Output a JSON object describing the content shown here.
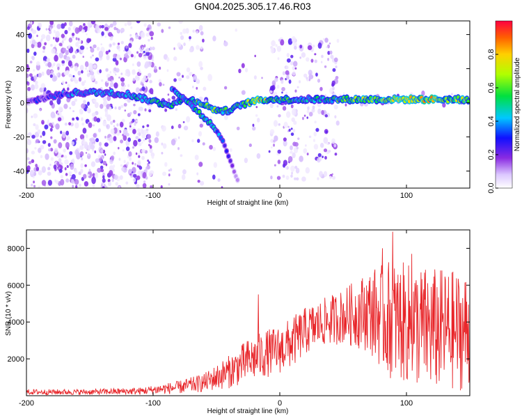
{
  "title": "GN04.2025.305.17.46.R03",
  "colors": {
    "snr_line": "#e8262a",
    "axis": "#000000",
    "background": "#ffffff",
    "scatter_light": "#e8d8ff",
    "scatter_mid": "#b080f0",
    "scatter_dark": "#6a0fe0"
  },
  "chart_data": [
    {
      "type": "heatmap",
      "name": "spectrogram",
      "xlabel": "Height of straight line (km)",
      "ylabel": "Frequency (Hz)",
      "xlim": [
        -200,
        150
      ],
      "ylim": [
        -50,
        48
      ],
      "xticks": [
        -200,
        -100,
        0,
        100
      ],
      "xtick_labels": [
        "-200",
        "-100",
        "0",
        "100"
      ],
      "yticks": [
        -40,
        -20,
        0,
        20,
        40
      ],
      "ytick_labels": [
        "-40",
        "-20",
        "0",
        "20",
        "40"
      ],
      "colorbar": {
        "label": "Normalized spectral amplitude",
        "range": [
          0,
          1
        ],
        "ticks": [
          0.0,
          0.2,
          0.4,
          0.6,
          0.8
        ],
        "tick_labels": [
          "0.0",
          "0.2",
          "0.4",
          "0.6",
          "0.8"
        ],
        "stops": [
          {
            "v": 0.0,
            "c": "#ffffff"
          },
          {
            "v": 0.08,
            "c": "#dcc8ff"
          },
          {
            "v": 0.18,
            "c": "#8a2be2"
          },
          {
            "v": 0.3,
            "c": "#1010ff"
          },
          {
            "v": 0.42,
            "c": "#00c8ff"
          },
          {
            "v": 0.55,
            "c": "#00e040"
          },
          {
            "v": 0.68,
            "c": "#b0ff00"
          },
          {
            "v": 0.8,
            "c": "#ffd000"
          },
          {
            "v": 0.9,
            "c": "#ff6000"
          },
          {
            "v": 1.0,
            "c": "#ff0040"
          }
        ]
      },
      "ridge": [
        {
          "x": -200,
          "y": 0,
          "a": 0.25
        },
        {
          "x": -180,
          "y": 4,
          "a": 0.3
        },
        {
          "x": -160,
          "y": 6,
          "a": 0.4
        },
        {
          "x": -140,
          "y": 6,
          "a": 0.45
        },
        {
          "x": -120,
          "y": 5,
          "a": 0.45
        },
        {
          "x": -105,
          "y": 2,
          "a": 0.5
        },
        {
          "x": -95,
          "y": 0,
          "a": 0.55
        },
        {
          "x": -85,
          "y": -1,
          "a": 0.5
        },
        {
          "x": -75,
          "y": 2,
          "a": 0.45
        },
        {
          "x": -65,
          "y": 1,
          "a": 0.55
        },
        {
          "x": -55,
          "y": -3,
          "a": 0.6
        },
        {
          "x": -45,
          "y": -5,
          "a": 0.55
        },
        {
          "x": -38,
          "y": -4,
          "a": 0.5
        },
        {
          "x": -30,
          "y": -1,
          "a": 0.55
        },
        {
          "x": -20,
          "y": 1,
          "a": 0.75
        },
        {
          "x": -10,
          "y": 2,
          "a": 0.7
        },
        {
          "x": 0,
          "y": 2,
          "a": 0.55
        },
        {
          "x": 10,
          "y": 2,
          "a": 0.5
        },
        {
          "x": 25,
          "y": 2,
          "a": 0.5
        },
        {
          "x": 40,
          "y": 2,
          "a": 0.5
        },
        {
          "x": 46,
          "y": 2,
          "a": 0.55
        },
        {
          "x": 60,
          "y": 2,
          "a": 0.65
        },
        {
          "x": 80,
          "y": 2,
          "a": 0.7
        },
        {
          "x": 100,
          "y": 2,
          "a": 0.7
        },
        {
          "x": 120,
          "y": 2,
          "a": 0.75
        },
        {
          "x": 135,
          "y": 2,
          "a": 0.7
        },
        {
          "x": 150,
          "y": 2,
          "a": 0.6
        }
      ],
      "branch": [
        {
          "x": -85,
          "y": 8,
          "a": 0.4
        },
        {
          "x": -75,
          "y": 2,
          "a": 0.45
        },
        {
          "x": -65,
          "y": -5,
          "a": 0.5
        },
        {
          "x": -55,
          "y": -12,
          "a": 0.45
        },
        {
          "x": -48,
          "y": -18,
          "a": 0.35
        },
        {
          "x": -42,
          "y": -28,
          "a": 0.25
        },
        {
          "x": -36,
          "y": -40,
          "a": 0.15
        },
        {
          "x": -32,
          "y": -47,
          "a": 0.1
        }
      ],
      "scatter_regions": [
        {
          "x0": -200,
          "x1": -100,
          "y0": -50,
          "y1": 48,
          "density": 1.0
        },
        {
          "x0": -100,
          "x1": -60,
          "y0": -50,
          "y1": 48,
          "density": 0.3
        },
        {
          "x0": -60,
          "x1": -5,
          "y0": -50,
          "y1": 48,
          "density": 0.08
        },
        {
          "x0": -7,
          "x1": 46,
          "y0": -45,
          "y1": 38,
          "density": 0.6
        },
        {
          "x0": 46,
          "x1": 150,
          "y0": -2,
          "y1": 6,
          "density": 0.3
        }
      ]
    },
    {
      "type": "line",
      "name": "snr",
      "xlabel": "Height of straight line (km)",
      "ylabel": "SNR (10 * v/v)",
      "xlim": [
        -200,
        150
      ],
      "ylim": [
        0,
        9000
      ],
      "xticks": [
        -200,
        -100,
        0,
        100
      ],
      "xtick_labels": [
        "-200",
        "-100",
        "0",
        "100"
      ],
      "yticks": [
        2000,
        4000,
        6000,
        8000
      ],
      "ytick_labels": [
        "2000",
        "4000",
        "6000",
        "8000"
      ],
      "envelope": [
        {
          "x": -200,
          "base": 200,
          "amp": 150
        },
        {
          "x": -150,
          "base": 200,
          "amp": 150
        },
        {
          "x": -110,
          "base": 250,
          "amp": 200
        },
        {
          "x": -80,
          "base": 450,
          "amp": 350
        },
        {
          "x": -60,
          "base": 700,
          "amp": 500
        },
        {
          "x": -40,
          "base": 1300,
          "amp": 900
        },
        {
          "x": -25,
          "base": 1900,
          "amp": 1200
        },
        {
          "x": -10,
          "base": 2300,
          "amp": 1300
        },
        {
          "x": 0,
          "base": 2500,
          "amp": 1300
        },
        {
          "x": 10,
          "base": 2900,
          "amp": 1400
        },
        {
          "x": 20,
          "base": 3500,
          "amp": 1300
        },
        {
          "x": 35,
          "base": 4000,
          "amp": 1300
        },
        {
          "x": 50,
          "base": 4300,
          "amp": 1500
        },
        {
          "x": 70,
          "base": 4600,
          "amp": 2200
        },
        {
          "x": 85,
          "base": 4200,
          "amp": 3200
        },
        {
          "x": 100,
          "base": 3900,
          "amp": 3300
        },
        {
          "x": 120,
          "base": 3600,
          "amp": 3400
        },
        {
          "x": 150,
          "base": 3500,
          "amp": 3200
        }
      ],
      "spikes": [
        {
          "x": -17,
          "y": 5500
        },
        {
          "x": 81,
          "y": 8000
        },
        {
          "x": 89,
          "y": 8900
        },
        {
          "x": 104,
          "y": 7700
        }
      ]
    }
  ]
}
